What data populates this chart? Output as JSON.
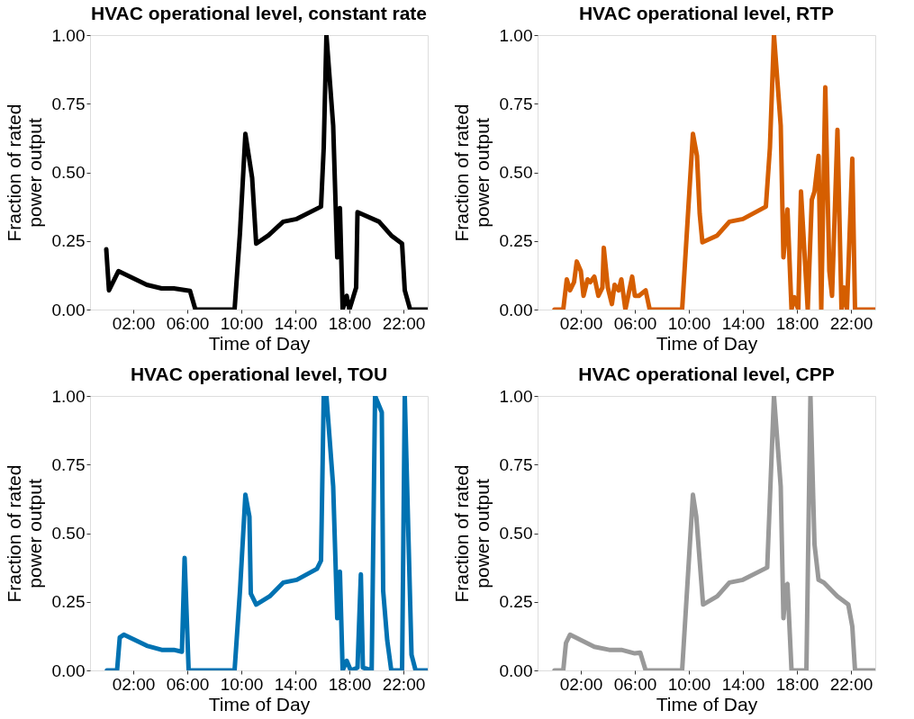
{
  "chart_data": [
    {
      "type": "line",
      "title": "HVAC operational level, constant rate",
      "xlabel": "Time of Day",
      "ylabel": "Fraction of rated\npower output",
      "grid": false,
      "line_style": "solid",
      "xlim": [
        -1.2,
        23.8
      ],
      "ylim": [
        0,
        1
      ],
      "xticks": [
        {
          "value": 2,
          "label": "02:00"
        },
        {
          "value": 6,
          "label": "06:00"
        },
        {
          "value": 10,
          "label": "10:00"
        },
        {
          "value": 14,
          "label": "14:00"
        },
        {
          "value": 18,
          "label": "18:00"
        },
        {
          "value": 22,
          "label": "22:00"
        }
      ],
      "yticks": [
        {
          "value": 0,
          "label": "0.00"
        },
        {
          "value": 0.25,
          "label": "0.25"
        },
        {
          "value": 0.5,
          "label": "0.50"
        },
        {
          "value": 0.75,
          "label": "0.75"
        },
        {
          "value": 1,
          "label": "1.00"
        }
      ],
      "series": [
        {
          "color": "#000000",
          "x": [
            0,
            0.2,
            0.9,
            3.0,
            4.1,
            5.0,
            6.2,
            6.6,
            9.5,
            9.9,
            10.3,
            10.8,
            11.1,
            12.0,
            13.1,
            14.1,
            15.9,
            16.1,
            16.3,
            16.8,
            17.1,
            17.3,
            17.5,
            17.8,
            18.0,
            18.5,
            18.6,
            20.2,
            21.1,
            21.9,
            22.1,
            22.5,
            23.8
          ],
          "values": [
            0.22,
            0.07,
            0.14,
            0.09,
            0.077,
            0.077,
            0.068,
            0,
            0,
            0.28,
            0.64,
            0.48,
            0.24,
            0.27,
            0.32,
            0.33,
            0.375,
            0.59,
            1.0,
            0.67,
            0.19,
            0.37,
            0,
            0.05,
            0,
            0.08,
            0.355,
            0.32,
            0.27,
            0.24,
            0.07,
            0,
            0
          ]
        }
      ]
    },
    {
      "type": "line",
      "title": "HVAC operational level, RTP",
      "xlabel": "Time of Day",
      "ylabel": "Fraction of rated\npower output",
      "grid": false,
      "line_style": "solid",
      "xlim": [
        -1.2,
        23.8
      ],
      "ylim": [
        0,
        1
      ],
      "xticks": [
        {
          "value": 2,
          "label": "02:00"
        },
        {
          "value": 6,
          "label": "06:00"
        },
        {
          "value": 10,
          "label": "10:00"
        },
        {
          "value": 14,
          "label": "14:00"
        },
        {
          "value": 18,
          "label": "18:00"
        },
        {
          "value": 22,
          "label": "22:00"
        }
      ],
      "yticks": [
        {
          "value": 0,
          "label": "0.00"
        },
        {
          "value": 0.25,
          "label": "0.25"
        },
        {
          "value": 0.5,
          "label": "0.50"
        },
        {
          "value": 0.75,
          "label": "0.75"
        },
        {
          "value": 1,
          "label": "1.00"
        }
      ],
      "series": [
        {
          "color": "#d55e00",
          "x": [
            0.05,
            0.7,
            0.96,
            1.2,
            1.5,
            1.7,
            2.0,
            2.2,
            2.5,
            2.7,
            3.0,
            3.3,
            3.6,
            3.7,
            4.0,
            4.3,
            4.5,
            4.8,
            5.0,
            5.3,
            5.8,
            6.0,
            6.3,
            6.8,
            7.1,
            9.5,
            9.9,
            10.3,
            10.6,
            10.8,
            11.0,
            12.1,
            13.0,
            14.0,
            15.7,
            16.0,
            16.3,
            16.8,
            17.0,
            17.3,
            17.6,
            17.8,
            18.1,
            18.3,
            18.8,
            19.1,
            19.3,
            19.6,
            19.8,
            20.1,
            20.4,
            20.6,
            21.0,
            21.3,
            21.5,
            21.7,
            22.1,
            22.3,
            23.8
          ],
          "values": [
            0,
            0,
            0.11,
            0.07,
            0.1,
            0.175,
            0.14,
            0.05,
            0.11,
            0.1,
            0.12,
            0.05,
            0.08,
            0.225,
            0.08,
            0.02,
            0.09,
            0.07,
            0.11,
            0,
            0.12,
            0.05,
            0.05,
            0.07,
            0,
            0,
            0.32,
            0.64,
            0.56,
            0.35,
            0.245,
            0.27,
            0.32,
            0.33,
            0.375,
            0.59,
            1.0,
            0.67,
            0.19,
            0.365,
            0,
            0.045,
            0,
            0.43,
            0,
            0.4,
            0.43,
            0.56,
            0,
            0.81,
            0.14,
            0.05,
            0.655,
            0,
            0.08,
            0,
            0.55,
            0,
            0
          ]
        }
      ]
    },
    {
      "type": "line",
      "title": "HVAC operational level, TOU",
      "xlabel": "Time of Day",
      "ylabel": "Fraction of rated\npower output",
      "grid": false,
      "line_style": "solid",
      "xlim": [
        -1.2,
        23.8
      ],
      "ylim": [
        0,
        1
      ],
      "xticks": [
        {
          "value": 2,
          "label": "02:00"
        },
        {
          "value": 6,
          "label": "06:00"
        },
        {
          "value": 10,
          "label": "10:00"
        },
        {
          "value": 14,
          "label": "14:00"
        },
        {
          "value": 18,
          "label": "18:00"
        },
        {
          "value": 22,
          "label": "22:00"
        }
      ],
      "yticks": [
        {
          "value": 0,
          "label": "0.00"
        },
        {
          "value": 0.25,
          "label": "0.25"
        },
        {
          "value": 0.5,
          "label": "0.50"
        },
        {
          "value": 0.75,
          "label": "0.75"
        },
        {
          "value": 1,
          "label": "1.00"
        }
      ],
      "series": [
        {
          "color": "#0072b2",
          "x": [
            0.05,
            0.8,
            1.0,
            1.3,
            3.0,
            4.1,
            5.0,
            5.6,
            5.8,
            6.1,
            9.5,
            9.9,
            10.3,
            10.6,
            10.7,
            11.1,
            12.1,
            13.1,
            14.1,
            15.6,
            15.9,
            16.1,
            16.3,
            16.8,
            17.1,
            17.3,
            17.5,
            17.8,
            18.1,
            18.6,
            18.85,
            19.0,
            19.65,
            19.9,
            20.4,
            20.5,
            20.8,
            21.1,
            21.9,
            22.1,
            22.6,
            22.9,
            23.8
          ],
          "values": [
            0,
            0,
            0.12,
            0.13,
            0.09,
            0.075,
            0.075,
            0.068,
            0.41,
            0,
            0,
            0.29,
            0.64,
            0.56,
            0.28,
            0.24,
            0.27,
            0.32,
            0.33,
            0.37,
            0.4,
            1.0,
            1.0,
            0.67,
            0.19,
            0.36,
            0,
            0.035,
            0,
            0.01,
            0.35,
            0.01,
            0,
            1.0,
            0.94,
            0.29,
            0.11,
            0,
            0,
            1.0,
            0.057,
            0,
            0
          ]
        }
      ]
    },
    {
      "type": "line",
      "title": "HVAC operational level, CPP",
      "xlabel": "Time of Day",
      "ylabel": "Fraction of rated\npower output",
      "grid": false,
      "line_style": "solid",
      "xlim": [
        -1.2,
        23.8
      ],
      "ylim": [
        0,
        1
      ],
      "xticks": [
        {
          "value": 2,
          "label": "02:00"
        },
        {
          "value": 6,
          "label": "06:00"
        },
        {
          "value": 10,
          "label": "10:00"
        },
        {
          "value": 14,
          "label": "14:00"
        },
        {
          "value": 18,
          "label": "18:00"
        },
        {
          "value": 22,
          "label": "22:00"
        }
      ],
      "yticks": [
        {
          "value": 0,
          "label": "0.00"
        },
        {
          "value": 0.25,
          "label": "0.25"
        },
        {
          "value": 0.5,
          "label": "0.50"
        },
        {
          "value": 0.75,
          "label": "0.75"
        },
        {
          "value": 1,
          "label": "1.00"
        }
      ],
      "series": [
        {
          "color": "#999999",
          "x": [
            0.05,
            0.7,
            0.9,
            1.2,
            3.0,
            4.1,
            5.0,
            6.0,
            6.4,
            6.8,
            9.5,
            9.9,
            10.3,
            10.55,
            11.05,
            12.1,
            13.0,
            14.0,
            15.8,
            16.3,
            16.8,
            17.0,
            17.2,
            17.3,
            17.6,
            18.7,
            19.0,
            19.3,
            19.6,
            20.0,
            21.0,
            21.8,
            22.1,
            22.3,
            23.8
          ],
          "values": [
            0,
            0,
            0.1,
            0.13,
            0.086,
            0.075,
            0.075,
            0.062,
            0.065,
            0,
            0,
            0.32,
            0.64,
            0.56,
            0.24,
            0.27,
            0.32,
            0.33,
            0.375,
            1.0,
            0.67,
            0.19,
            0.31,
            0.315,
            0,
            0,
            1.0,
            0.46,
            0.33,
            0.32,
            0.27,
            0.24,
            0.16,
            0,
            0
          ]
        }
      ]
    }
  ]
}
